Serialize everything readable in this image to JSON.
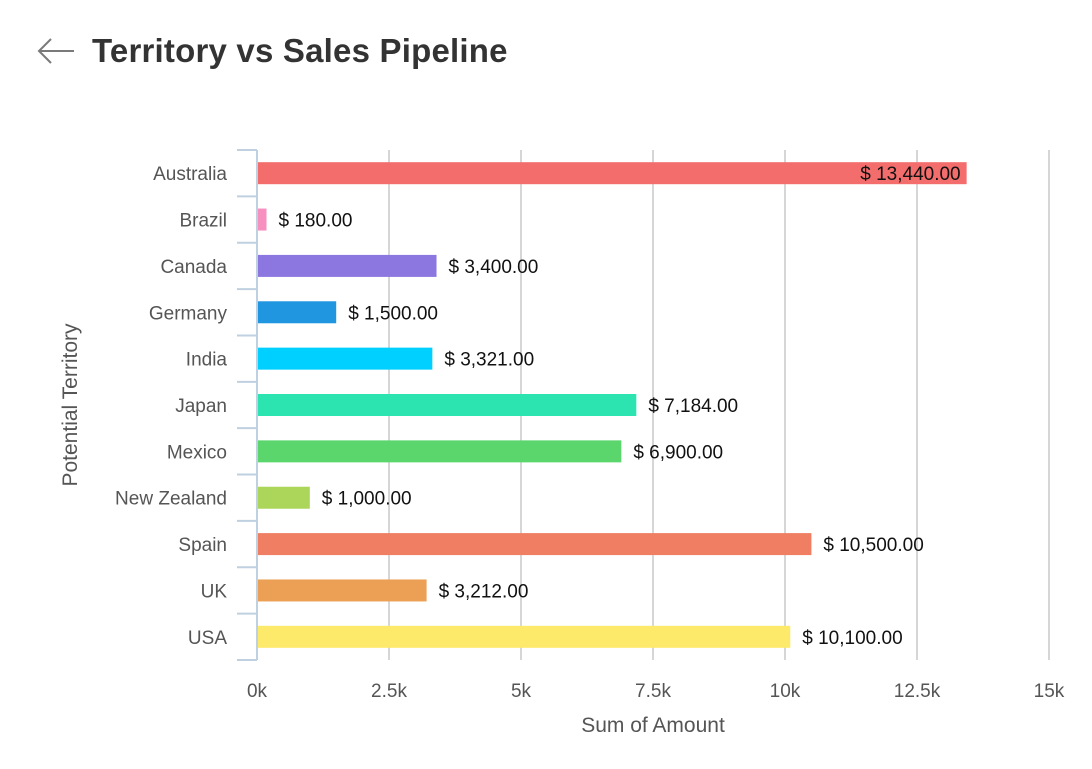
{
  "header": {
    "back_icon": "arrow-left-icon",
    "title": "Territory vs Sales Pipeline"
  },
  "chart_data": {
    "type": "bar",
    "orientation": "horizontal",
    "title": "Territory vs Sales Pipeline",
    "xlabel": "Sum of Amount",
    "ylabel": "Potential Territory",
    "xlim": [
      0,
      15000
    ],
    "x_ticks": [
      0,
      2500,
      5000,
      7500,
      10000,
      12500,
      15000
    ],
    "x_tick_labels": [
      "0k",
      "2.5k",
      "5k",
      "7.5k",
      "10k",
      "12.5k",
      "15k"
    ],
    "grid": true,
    "legend": "none",
    "categories": [
      "Australia",
      "Brazil",
      "Canada",
      "Germany",
      "India",
      "Japan",
      "Mexico",
      "New Zealand",
      "Spain",
      "UK",
      "USA"
    ],
    "values": [
      13440,
      180,
      3400,
      1500,
      3321,
      7184,
      6900,
      1000,
      10500,
      3212,
      10100
    ],
    "data_labels": [
      "$ 13,440.00",
      "$ 180.00",
      "$ 3,400.00",
      "$ 1,500.00",
      "$ 3,321.00",
      "$ 7,184.00",
      "$ 6,900.00",
      "$ 1,000.00",
      "$ 10,500.00",
      "$ 3,212.00",
      "$ 10,100.00"
    ],
    "colors": [
      "#f36d6d",
      "#f78fbf",
      "#8c77e0",
      "#2196e0",
      "#00d0ff",
      "#2be4b0",
      "#5bd66d",
      "#acd65a",
      "#ef7e63",
      "#eba055",
      "#fde96a"
    ]
  }
}
